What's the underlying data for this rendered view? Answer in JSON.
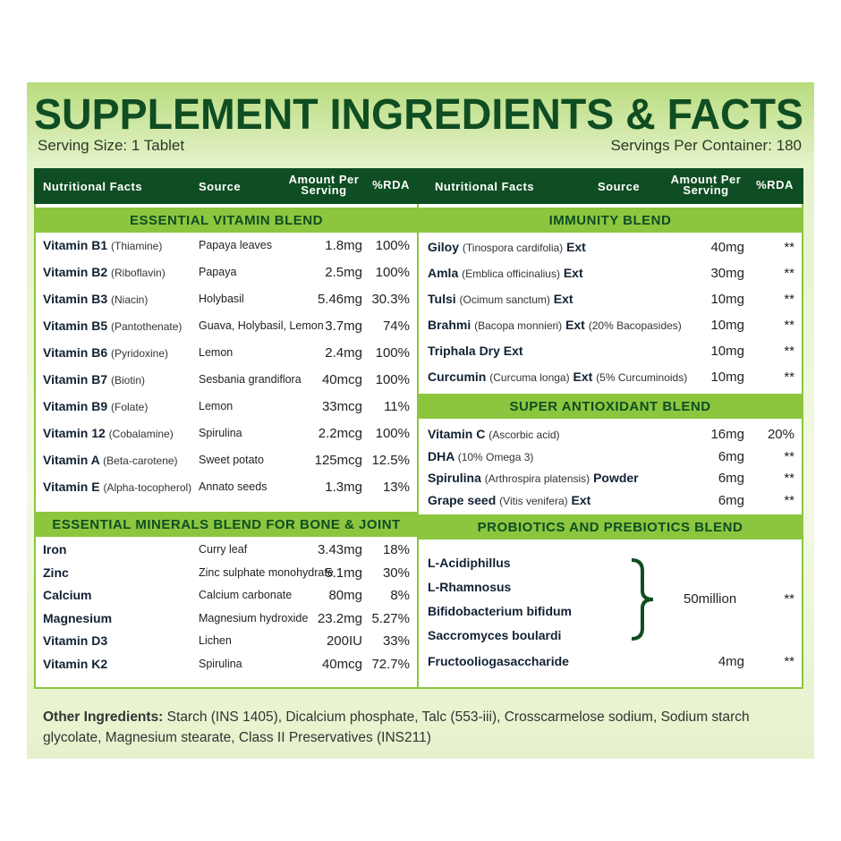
{
  "title": "SUPPLEMENT INGREDIENTS & FACTS",
  "serving_size": "Serving Size:  1 Tablet",
  "servings_per_container": "Servings Per Container: 180",
  "left": {
    "headers": [
      "Nutritional Facts",
      "Source",
      "Amount Per Serving",
      "%RDA"
    ],
    "sections": [
      {
        "title": "ESSENTIAL VITAMIN BLEND",
        "rows": [
          {
            "name": "Vitamin B1",
            "detail": "(Thiamine)",
            "source": "Papaya leaves",
            "amount": "1.8mg",
            "rda": "100%"
          },
          {
            "name": "Vitamin B2",
            "detail": "(Riboflavin)",
            "source": "Papaya",
            "amount": "2.5mg",
            "rda": "100%"
          },
          {
            "name": "Vitamin B3",
            "detail": "(Niacin)",
            "source": "Holybasil",
            "amount": "5.46mg",
            "rda": "30.3%"
          },
          {
            "name": "Vitamin B5",
            "detail": "(Pantothenate)",
            "source": "Guava, Holybasil, Lemon",
            "amount": "3.7mg",
            "rda": "74%"
          },
          {
            "name": "Vitamin B6",
            "detail": "(Pyridoxine)",
            "source": "Lemon",
            "amount": "2.4mg",
            "rda": "100%"
          },
          {
            "name": "Vitamin B7",
            "detail": "(Biotin)",
            "source": "Sesbania grandiflora",
            "amount": "40mcg",
            "rda": "100%"
          },
          {
            "name": "Vitamin B9",
            "detail": "(Folate)",
            "source": "Lemon",
            "amount": "33mcg",
            "rda": "11%"
          },
          {
            "name": "Vitamin 12",
            "detail": "(Cobalamine)",
            "source": "Spirulina",
            "amount": "2.2mcg",
            "rda": "100%"
          },
          {
            "name": "Vitamin A",
            "detail": "(Beta-carotene)",
            "source": "Sweet potato",
            "amount": "125mcg",
            "rda": "12.5%"
          },
          {
            "name": "Vitamin E",
            "detail": "(Alpha-tocopherol)",
            "source": "Annato seeds",
            "amount": "1.3mg",
            "rda": "13%"
          }
        ]
      },
      {
        "title": "ESSENTIAL MINERALS BLEND FOR BONE & JOINT",
        "rows": [
          {
            "name": "Iron",
            "source": "Curry leaf",
            "amount": "3.43mg",
            "rda": "18%"
          },
          {
            "name": "Zinc",
            "source": "Zinc sulphate monohydrate",
            "amount": "5.1mg",
            "rda": "30%"
          },
          {
            "name": "Calcium",
            "source": "Calcium carbonate",
            "amount": "80mg",
            "rda": "8%"
          },
          {
            "name": "Magnesium",
            "source": "Magnesium hydroxide",
            "amount": "23.2mg",
            "rda": "5.27%"
          },
          {
            "name": "Vitamin D3",
            "source": "Lichen",
            "amount": "200IU",
            "rda": "33%"
          },
          {
            "name": "Vitamin K2",
            "source": "Spirulina",
            "amount": "40mcg",
            "rda": "72.7%"
          }
        ]
      }
    ]
  },
  "right": {
    "headers": [
      "Nutritional Facts",
      "Source",
      "Amount Per Serving",
      "%RDA"
    ],
    "sections": [
      {
        "title": "IMMUNITY BLEND",
        "rows": [
          {
            "name": "Giloy",
            "detail": "(Tinospora cardifolia)",
            "ext": "Ext",
            "amount": "40mg",
            "rda": "**"
          },
          {
            "name": "Amla",
            "detail": "(Emblica officinalius)",
            "ext": "Ext",
            "amount": "30mg",
            "rda": "**"
          },
          {
            "name": "Tulsi",
            "detail": "(Ocimum sanctum)",
            "ext": "Ext",
            "amount": "10mg",
            "rda": "**"
          },
          {
            "name": "Brahmi",
            "detail": "(Bacopa monnieri)",
            "ext": "Ext",
            "note": "(20% Bacopasides)",
            "amount": "10mg",
            "rda": "**"
          },
          {
            "name": "Triphala Dry Ext",
            "amount": "10mg",
            "rda": "**"
          },
          {
            "name": "Curcumin",
            "detail": "(Curcuma longa)",
            "ext": "Ext",
            "note": "(5% Curcuminoids)",
            "amount": "10mg",
            "rda": "**"
          }
        ]
      },
      {
        "title": "SUPER ANTIOXIDANT BLEND",
        "rows": [
          {
            "name": "Vitamin C",
            "detail": "(Ascorbic acid)",
            "amount": "16mg",
            "rda": "20%"
          },
          {
            "name": "DHA",
            "detail": "(10% Omega 3)",
            "amount": "6mg",
            "rda": "**"
          },
          {
            "name": "Spirulina",
            "detail": "(Arthrospira platensis)",
            "ext": "Powder",
            "amount": "6mg",
            "rda": "**"
          },
          {
            "name": "Grape seed",
            "detail": "(Vitis venifera)",
            "ext": "Ext",
            "amount": "6mg",
            "rda": "**"
          }
        ]
      },
      {
        "title": "PROBIOTICS AND PREBIOTICS BLEND",
        "group": {
          "items": [
            "L-Acidiphillus",
            "L-Rhamnosus",
            "Bifidobacterium bifidum",
            "Saccromyces boulardi"
          ],
          "amount": "50million",
          "rda": "**"
        },
        "rows": [
          {
            "name": "Fructooliogasaccharide",
            "amount": "4mg",
            "rda": "**"
          }
        ]
      }
    ]
  },
  "other_ingredients": {
    "label": "Other Ingredients:",
    "text": "Starch (INS 1405), Dicalcium phosphate, Talc (553-iii), Crosscarmelose sodium, Sodium starch glycolate, Magnesium stearate, Class II Preservatives (INS211)"
  }
}
